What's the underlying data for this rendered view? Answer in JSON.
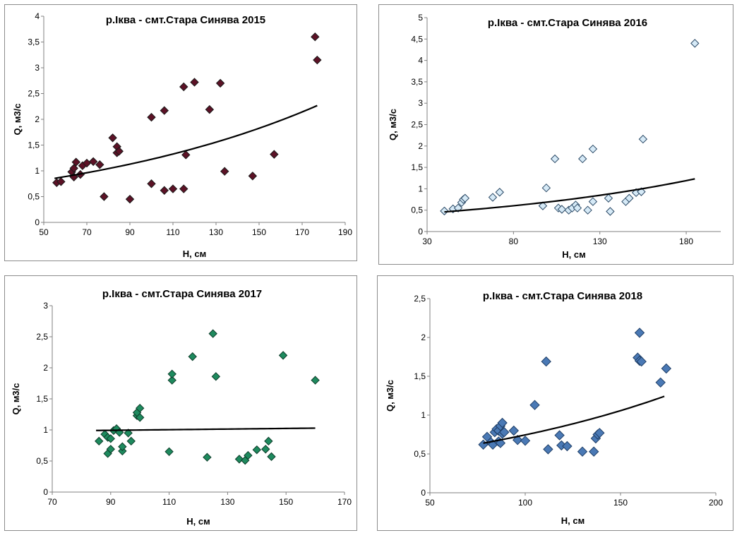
{
  "chart_data": [
    {
      "type": "scatter",
      "title": "р.Іква - смт.Стара Синява 2015",
      "xlabel": "H, см",
      "ylabel": "Q, м3/с",
      "xlim": [
        50,
        190
      ],
      "ylim": [
        0,
        4
      ],
      "x_ticks": [
        "50",
        "70",
        "90",
        "110",
        "130",
        "150",
        "170",
        "190"
      ],
      "y_ticks": [
        "0",
        "0,5",
        "1",
        "1,5",
        "2",
        "2,5",
        "3",
        "3,5",
        "4"
      ],
      "marker_color": "#5c1226",
      "marker_stroke": "#1a1a1a",
      "points": [
        [
          56,
          0.77
        ],
        [
          58,
          0.79
        ],
        [
          63,
          0.98
        ],
        [
          64,
          1.05
        ],
        [
          64,
          0.88
        ],
        [
          65,
          1.17
        ],
        [
          67,
          0.93
        ],
        [
          68,
          1.1
        ],
        [
          70,
          1.15
        ],
        [
          73,
          1.18
        ],
        [
          76,
          1.12
        ],
        [
          78,
          0.5
        ],
        [
          82,
          1.64
        ],
        [
          84,
          1.47
        ],
        [
          84,
          1.35
        ],
        [
          85,
          1.38
        ],
        [
          90,
          0.45
        ],
        [
          100,
          2.04
        ],
        [
          100,
          0.75
        ],
        [
          106,
          0.62
        ],
        [
          106,
          2.17
        ],
        [
          110,
          0.65
        ],
        [
          115,
          0.65
        ],
        [
          115,
          2.63
        ],
        [
          116,
          1.31
        ],
        [
          120,
          2.72
        ],
        [
          127,
          2.19
        ],
        [
          132,
          2.7
        ],
        [
          134,
          0.99
        ],
        [
          147,
          0.9
        ],
        [
          157,
          1.32
        ],
        [
          176,
          3.6
        ],
        [
          177,
          3.15
        ]
      ],
      "trend": {
        "a": 0.55,
        "b": 0.008,
        "x_from": 55,
        "x_to": 177
      }
    },
    {
      "type": "scatter",
      "title": "р.Іква - смт.Стара Синява 2016",
      "xlabel": "H, см",
      "ylabel": "Q, м3/с",
      "xlim": [
        30,
        200
      ],
      "ylim": [
        0,
        5
      ],
      "x_ticks": [
        "30",
        "80",
        "130",
        "180"
      ],
      "y_ticks": [
        "0",
        "0,5",
        "1",
        "1,5",
        "2",
        "2,5",
        "3",
        "3,5",
        "4",
        "4,5",
        "5"
      ],
      "marker_color": "#d6eaf7",
      "marker_stroke": "#2c4a66",
      "points": [
        [
          40,
          0.48
        ],
        [
          45,
          0.53
        ],
        [
          48,
          0.55
        ],
        [
          50,
          0.68
        ],
        [
          51,
          0.75
        ],
        [
          52,
          0.78
        ],
        [
          68,
          0.8
        ],
        [
          72,
          0.92
        ],
        [
          97,
          0.6
        ],
        [
          99,
          1.02
        ],
        [
          104,
          1.7
        ],
        [
          106,
          0.55
        ],
        [
          108,
          0.52
        ],
        [
          112,
          0.5
        ],
        [
          114,
          0.55
        ],
        [
          116,
          0.62
        ],
        [
          117,
          0.55
        ],
        [
          120,
          1.7
        ],
        [
          123,
          0.5
        ],
        [
          126,
          0.7
        ],
        [
          126,
          1.93
        ],
        [
          135,
          0.78
        ],
        [
          136,
          0.47
        ],
        [
          145,
          0.7
        ],
        [
          147,
          0.78
        ],
        [
          151,
          0.91
        ],
        [
          154,
          0.93
        ],
        [
          155,
          2.16
        ],
        [
          185,
          4.4
        ]
      ],
      "trend": {
        "a": 0.35,
        "b": 0.0068,
        "x_from": 40,
        "x_to": 185
      }
    },
    {
      "type": "scatter",
      "title": "р.Іква - смт.Стара Синява 2017",
      "xlabel": "H, см",
      "ylabel": "Q, м3/с",
      "xlim": [
        70,
        170
      ],
      "ylim": [
        0,
        3
      ],
      "x_ticks": [
        "70",
        "90",
        "110",
        "130",
        "150",
        "170"
      ],
      "y_ticks": [
        "0",
        "0,5",
        "1",
        "1,5",
        "2",
        "2,5",
        "3"
      ],
      "marker_color": "#1e8a5e",
      "marker_stroke": "#0e3d2a",
      "points": [
        [
          86,
          0.82
        ],
        [
          88,
          0.93
        ],
        [
          89,
          0.62
        ],
        [
          89,
          0.88
        ],
        [
          90,
          0.69
        ],
        [
          90,
          0.86
        ],
        [
          91,
          0.99
        ],
        [
          92,
          1.02
        ],
        [
          93,
          0.96
        ],
        [
          94,
          0.66
        ],
        [
          94,
          0.73
        ],
        [
          96,
          0.95
        ],
        [
          97,
          0.82
        ],
        [
          99,
          1.23
        ],
        [
          99,
          1.28
        ],
        [
          100,
          1.2
        ],
        [
          100,
          1.35
        ],
        [
          110,
          0.65
        ],
        [
          111,
          1.8
        ],
        [
          111,
          1.9
        ],
        [
          118,
          2.18
        ],
        [
          123,
          0.56
        ],
        [
          125,
          2.55
        ],
        [
          126,
          1.86
        ],
        [
          134,
          0.53
        ],
        [
          136,
          0.51
        ],
        [
          137,
          0.59
        ],
        [
          140,
          0.68
        ],
        [
          143,
          0.69
        ],
        [
          144,
          0.82
        ],
        [
          145,
          0.57
        ],
        [
          149,
          2.2
        ],
        [
          160,
          1.8
        ]
      ],
      "trend": {
        "a": 0.95,
        "b": 0.0005,
        "x_from": 85,
        "x_to": 160
      }
    },
    {
      "type": "scatter",
      "title": "р.Іква - смт.Стара Синява 2018",
      "xlabel": "H, см",
      "ylabel": "Q, м3/с",
      "xlim": [
        50,
        200
      ],
      "ylim": [
        0,
        2.5
      ],
      "x_ticks": [
        "50",
        "100",
        "150",
        "200"
      ],
      "y_ticks": [
        "0",
        "0,5",
        "1",
        "1,5",
        "2",
        "2,5"
      ],
      "marker_color": "#4a79b5",
      "marker_stroke": "#1f3e66",
      "points": [
        [
          78,
          0.62
        ],
        [
          80,
          0.72
        ],
        [
          82,
          0.65
        ],
        [
          83,
          0.62
        ],
        [
          84,
          0.78
        ],
        [
          85,
          0.82
        ],
        [
          86,
          0.66
        ],
        [
          86,
          0.8
        ],
        [
          87,
          0.86
        ],
        [
          87,
          0.64
        ],
        [
          88,
          0.9
        ],
        [
          88,
          0.76
        ],
        [
          89,
          0.78
        ],
        [
          94,
          0.8
        ],
        [
          96,
          0.68
        ],
        [
          100,
          0.67
        ],
        [
          105,
          1.13
        ],
        [
          111,
          1.69
        ],
        [
          112,
          0.56
        ],
        [
          118,
          0.74
        ],
        [
          119,
          0.61
        ],
        [
          122,
          0.6
        ],
        [
          130,
          0.53
        ],
        [
          136,
          0.53
        ],
        [
          137,
          0.7
        ],
        [
          138,
          0.75
        ],
        [
          139,
          0.77
        ],
        [
          159,
          1.74
        ],
        [
          160,
          1.7
        ],
        [
          161,
          1.69
        ],
        [
          160,
          2.06
        ],
        [
          171,
          1.42
        ],
        [
          174,
          1.6
        ]
      ],
      "trend": {
        "a": 0.37,
        "b": 0.007,
        "x_from": 78,
        "x_to": 173
      }
    }
  ]
}
